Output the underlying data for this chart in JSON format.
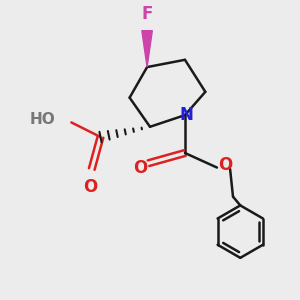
{
  "bg_color": "#ececec",
  "bond_color": "#1a1a1a",
  "N_color": "#2020dd",
  "O_color": "#dd2020",
  "F_color": "#cc44aa",
  "H_color": "#777777",
  "figsize": [
    3.0,
    3.0
  ],
  "dpi": 100,
  "xlim": [
    0,
    10
  ],
  "ylim": [
    0,
    10
  ]
}
